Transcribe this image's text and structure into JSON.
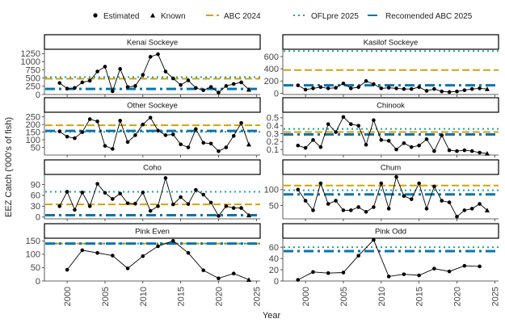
{
  "legend": {
    "points": [
      {
        "key": "estimated",
        "label": "Estimated",
        "shape": "circle"
      },
      {
        "key": "known",
        "label": "Known",
        "shape": "triangle"
      }
    ],
    "lines": [
      {
        "key": "abc2024",
        "label": "ABC 2024",
        "color": "#D4A20A",
        "dash": "dash"
      },
      {
        "key": "oflpre2025",
        "label": "OFLpre 2025",
        "color": "#1AA39A",
        "dash": "dot"
      },
      {
        "key": "recabc2025",
        "label": "Recomended ABC 2025",
        "color": "#0A74AD",
        "dash": "dashdot"
      }
    ]
  },
  "axes": {
    "xlabel": "Year",
    "ylabel": "EEZ Catch ('000's of fish)",
    "xlim": [
      1997,
      2025.5
    ],
    "xticks": [
      2000,
      2005,
      2010,
      2015,
      2020,
      2025
    ]
  },
  "chart_data": [
    {
      "type": "line",
      "title": "Kenai Sockeye",
      "ylim": [
        0,
        1380
      ],
      "yticks": [
        0,
        250,
        500,
        750,
        1000,
        1250
      ],
      "x": [
        1999,
        2000,
        2001,
        2002,
        2003,
        2004,
        2005,
        2006,
        2007,
        2008,
        2009,
        2010,
        2011,
        2012,
        2013,
        2014,
        2015,
        2016,
        2017,
        2018,
        2019,
        2020,
        2021,
        2022,
        2023,
        2024
      ],
      "y": [
        350,
        180,
        200,
        370,
        420,
        700,
        850,
        100,
        780,
        230,
        260,
        600,
        1150,
        1230,
        700,
        490,
        290,
        430,
        200,
        130,
        230,
        60,
        260,
        320,
        370,
        150
      ],
      "known_from": 2024,
      "refs": {
        "abc2024": 480,
        "oflpre2025": 530,
        "recabc2025": 170
      }
    },
    {
      "type": "line",
      "title": "Kasilof Sockeye",
      "ylim": [
        -20,
        720
      ],
      "yticks": [
        0,
        200,
        400,
        600
      ],
      "x": [
        1999,
        2000,
        2001,
        2002,
        2003,
        2004,
        2005,
        2006,
        2007,
        2008,
        2009,
        2010,
        2011,
        2012,
        2013,
        2014,
        2015,
        2016,
        2017,
        2018,
        2019,
        2020,
        2021,
        2022,
        2023,
        2024
      ],
      "y": [
        130,
        60,
        80,
        100,
        80,
        90,
        160,
        80,
        100,
        200,
        150,
        80,
        90,
        80,
        70,
        70,
        100,
        40,
        70,
        30,
        20,
        30,
        50,
        70,
        80,
        70
      ],
      "known_from": 2024,
      "refs": {
        "abc2024": 380,
        "oflpre2025": 690,
        "recabc2025": 130
      }
    },
    {
      "type": "line",
      "title": "Other Sockeye",
      "ylim": [
        0,
        280
      ],
      "yticks": [
        50,
        100,
        150,
        200,
        250
      ],
      "x": [
        1999,
        2000,
        2001,
        2002,
        2003,
        2004,
        2005,
        2006,
        2007,
        2008,
        2009,
        2010,
        2011,
        2012,
        2013,
        2014,
        2015,
        2016,
        2017,
        2018,
        2019,
        2020,
        2021,
        2022,
        2023,
        2024
      ],
      "y": [
        155,
        120,
        110,
        150,
        235,
        220,
        60,
        40,
        225,
        85,
        130,
        200,
        245,
        160,
        130,
        135,
        70,
        50,
        170,
        80,
        75,
        25,
        50,
        125,
        210,
        70
      ],
      "known_from": 2024,
      "refs": {
        "abc2024": 195,
        "oflpre2025": 152,
        "recabc2025": 158
      }
    },
    {
      "type": "line",
      "title": "Chinook",
      "ylim": [
        0.03,
        0.57
      ],
      "yticks": [
        0.1,
        0.2,
        0.3,
        0.4,
        0.5
      ],
      "x": [
        1999,
        2000,
        2001,
        2002,
        2003,
        2004,
        2005,
        2006,
        2007,
        2008,
        2009,
        2010,
        2011,
        2012,
        2013,
        2014,
        2015,
        2016,
        2017,
        2018,
        2019,
        2020,
        2021,
        2022,
        2023,
        2024
      ],
      "y": [
        0.15,
        0.12,
        0.22,
        0.13,
        0.42,
        0.32,
        0.51,
        0.42,
        0.4,
        0.16,
        0.47,
        0.22,
        0.21,
        0.1,
        0.18,
        0.13,
        0.15,
        0.23,
        0.08,
        0.28,
        0.09,
        0.08,
        0.09,
        0.08,
        0.06,
        0.05
      ],
      "known_from": 2024,
      "refs": {
        "abc2024": 0.32,
        "oflpre2025": 0.36,
        "recabc2025": 0.29
      }
    },
    {
      "type": "line",
      "title": "Coho",
      "ylim": [
        -5,
        118
      ],
      "yticks": [
        0,
        30,
        60,
        90
      ],
      "x": [
        1999,
        2000,
        2001,
        2002,
        2003,
        2004,
        2005,
        2006,
        2007,
        2008,
        2009,
        2010,
        2011,
        2012,
        2013,
        2014,
        2015,
        2016,
        2017,
        2018,
        2019,
        2020,
        2021,
        2022,
        2023,
        2024
      ],
      "y": [
        30,
        70,
        20,
        68,
        30,
        92,
        67,
        50,
        65,
        38,
        37,
        68,
        17,
        30,
        108,
        35,
        55,
        36,
        75,
        62,
        40,
        3,
        30,
        25,
        25,
        5
      ],
      "known_from": 2024,
      "refs": {
        "abc2024": 35,
        "oflpre2025": 70,
        "recabc2025": 5
      }
    },
    {
      "type": "line",
      "title": "Chum",
      "ylim": [
        8,
        148
      ],
      "yticks": [
        50,
        100
      ],
      "x": [
        1999,
        2000,
        2001,
        2002,
        2003,
        2004,
        2005,
        2006,
        2007,
        2008,
        2009,
        2010,
        2011,
        2012,
        2013,
        2014,
        2015,
        2016,
        2017,
        2018,
        2019,
        2020,
        2021,
        2022,
        2023,
        2024
      ],
      "y": [
        100,
        65,
        35,
        120,
        55,
        65,
        35,
        35,
        45,
        30,
        45,
        120,
        40,
        140,
        80,
        70,
        120,
        40,
        110,
        65,
        60,
        15,
        35,
        40,
        55,
        35
      ],
      "known_from": 2024,
      "refs": {
        "abc2024": 113,
        "oflpre2025": 98,
        "recabc2025": 85
      }
    },
    {
      "type": "line",
      "title": "Pink Even",
      "ylim": [
        0,
        160
      ],
      "yticks": [
        0,
        50,
        100,
        150
      ],
      "x": [
        2000,
        2002,
        2004,
        2006,
        2008,
        2010,
        2012,
        2014,
        2016,
        2018,
        2020,
        2022,
        2024
      ],
      "y": [
        42,
        115,
        105,
        95,
        47,
        93,
        130,
        150,
        105,
        40,
        10,
        28,
        5
      ],
      "known_from": 2024,
      "refs": {
        "abc2024": 140,
        "oflpre2025": 140,
        "recabc2025": 140
      }
    },
    {
      "type": "line",
      "title": "Pink Odd",
      "ylim": [
        0,
        76
      ],
      "yticks": [
        0,
        20,
        40,
        60
      ],
      "x": [
        1999,
        2001,
        2003,
        2005,
        2007,
        2009,
        2011,
        2013,
        2015,
        2017,
        2019,
        2021,
        2023
      ],
      "y": [
        2,
        16,
        14,
        15,
        45,
        73,
        8,
        12,
        10,
        22,
        17,
        27,
        26
      ],
      "known_from": 9999,
      "refs": {
        "abc2024": null,
        "oflpre2025": 60,
        "recabc2025": 53
      }
    }
  ]
}
